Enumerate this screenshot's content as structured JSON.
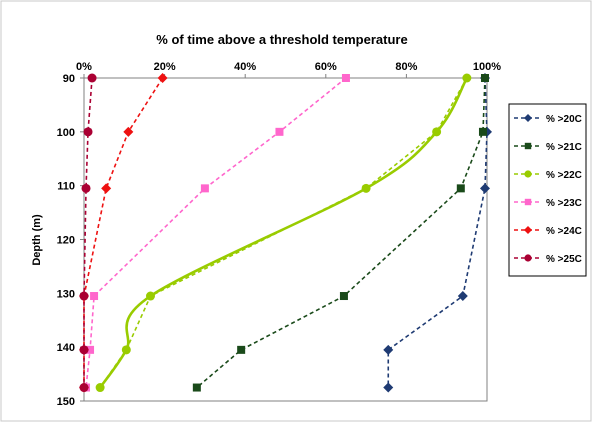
{
  "chart_data": {
    "type": "line",
    "title": "% of time above a threshold temperature",
    "ylabel": "Depth (m)",
    "xlabel": "",
    "xlim": [
      0,
      100
    ],
    "ylim": [
      90,
      150
    ],
    "y_inverted": true,
    "x_axis_position": "top",
    "x_ticks": [
      "0%",
      "20%",
      "40%",
      "60%",
      "80%",
      "100%"
    ],
    "y_ticks": [
      "90",
      "100",
      "110",
      "120",
      "130",
      "140",
      "150"
    ],
    "legend_position": "right",
    "depths": [
      90,
      100,
      110.5,
      130.5,
      140.5,
      147.5
    ],
    "series": [
      {
        "name": "% >20C",
        "color": "#1f3b73",
        "marker": "diamond",
        "points": [
          [
            99.5,
            90
          ],
          [
            100,
            100
          ],
          [
            99.5,
            110.5
          ],
          [
            94,
            130.5
          ],
          [
            75.5,
            140.5
          ],
          [
            75.5,
            147.5
          ]
        ]
      },
      {
        "name": "% >21C",
        "color": "#1a4a1a",
        "marker": "square",
        "points": [
          [
            99.5,
            90
          ],
          [
            99,
            100
          ],
          [
            93.5,
            110.5
          ],
          [
            64.5,
            130.5
          ],
          [
            39,
            140.5
          ],
          [
            28,
            147.5
          ]
        ]
      },
      {
        "name": "% >22C",
        "color": "#99cc00",
        "marker": "circle",
        "points": [
          [
            95,
            90
          ],
          [
            87.5,
            100
          ],
          [
            70,
            110.5
          ],
          [
            16.5,
            130.5
          ],
          [
            10.5,
            140.5
          ],
          [
            4,
            147.5
          ]
        ],
        "trend_curve": true
      },
      {
        "name": "% >23C",
        "color": "#ff66cc",
        "marker": "square",
        "points": [
          [
            65,
            90
          ],
          [
            48.5,
            100
          ],
          [
            30,
            110.5
          ],
          [
            2.5,
            130.5
          ],
          [
            1.5,
            140.5
          ],
          [
            0.5,
            147.5
          ]
        ]
      },
      {
        "name": "% >24C",
        "color": "#ee1111",
        "marker": "diamond",
        "points": [
          [
            19.5,
            90
          ],
          [
            11,
            100
          ],
          [
            5.5,
            110.5
          ],
          [
            0,
            130.5
          ],
          [
            0,
            140.5
          ],
          [
            0,
            147.5
          ]
        ]
      },
      {
        "name": "% >25C",
        "color": "#aa0033",
        "marker": "circle",
        "points": [
          [
            2,
            90
          ],
          [
            1,
            100
          ],
          [
            0.5,
            110.5
          ],
          [
            0,
            130.5
          ],
          [
            0,
            140.5
          ],
          [
            0,
            147.5
          ]
        ]
      }
    ]
  }
}
